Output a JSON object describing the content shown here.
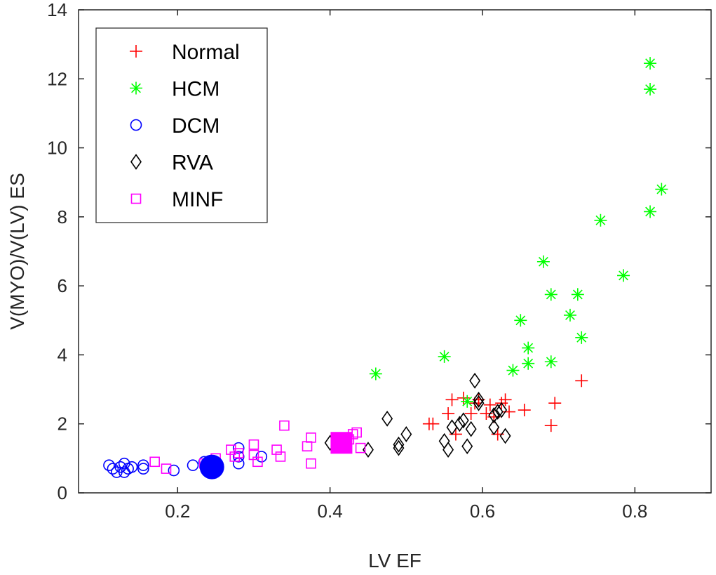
{
  "chart_data": {
    "type": "scatter",
    "title": "",
    "xlabel": "LV EF",
    "ylabel": "V(MYO)/V(LV) ES",
    "xlim": [
      0.07,
      0.9
    ],
    "ylim": [
      0,
      14
    ],
    "xticks": [
      0.2,
      0.4,
      0.6,
      0.8
    ],
    "yticks": [
      0,
      2,
      4,
      6,
      8,
      10,
      12,
      14
    ],
    "xtick_labels": [
      "0.2",
      "0.4",
      "0.6",
      "0.8"
    ],
    "ytick_labels": [
      "0",
      "2",
      "4",
      "6",
      "8",
      "10",
      "12",
      "14"
    ],
    "grid": false,
    "legend_position": "top-left",
    "series": [
      {
        "name": "Normal",
        "marker": "plus",
        "color": "#ff0000",
        "points": [
          [
            0.53,
            2.0
          ],
          [
            0.535,
            2.0
          ],
          [
            0.555,
            2.3
          ],
          [
            0.56,
            2.7
          ],
          [
            0.565,
            1.7
          ],
          [
            0.575,
            2.75
          ],
          [
            0.585,
            2.3
          ],
          [
            0.59,
            2.6
          ],
          [
            0.595,
            2.7
          ],
          [
            0.605,
            2.3
          ],
          [
            0.61,
            2.55
          ],
          [
            0.615,
            2.2
          ],
          [
            0.62,
            1.7
          ],
          [
            0.625,
            2.6
          ],
          [
            0.63,
            2.7
          ],
          [
            0.635,
            2.35
          ],
          [
            0.655,
            2.4
          ],
          [
            0.69,
            1.95
          ],
          [
            0.695,
            2.6
          ],
          [
            0.73,
            3.25
          ]
        ]
      },
      {
        "name": "HCM",
        "marker": "asterisk",
        "color": "#00ff00",
        "points": [
          [
            0.46,
            3.45
          ],
          [
            0.55,
            3.95
          ],
          [
            0.58,
            2.65
          ],
          [
            0.64,
            3.55
          ],
          [
            0.65,
            5.0
          ],
          [
            0.66,
            4.2
          ],
          [
            0.66,
            3.75
          ],
          [
            0.68,
            6.7
          ],
          [
            0.69,
            5.75
          ],
          [
            0.69,
            3.8
          ],
          [
            0.715,
            5.15
          ],
          [
            0.725,
            5.75
          ],
          [
            0.73,
            4.5
          ],
          [
            0.755,
            7.9
          ],
          [
            0.785,
            6.3
          ],
          [
            0.82,
            12.45
          ],
          [
            0.82,
            11.7
          ],
          [
            0.82,
            8.15
          ],
          [
            0.835,
            8.8
          ]
        ]
      },
      {
        "name": "DCM",
        "marker": "circle",
        "color": "#0000ff",
        "points": [
          [
            0.11,
            0.8
          ],
          [
            0.115,
            0.7
          ],
          [
            0.12,
            0.6
          ],
          [
            0.125,
            0.75
          ],
          [
            0.13,
            0.85
          ],
          [
            0.13,
            0.6
          ],
          [
            0.135,
            0.7
          ],
          [
            0.14,
            0.75
          ],
          [
            0.155,
            0.7
          ],
          [
            0.155,
            0.8
          ],
          [
            0.195,
            0.65
          ],
          [
            0.22,
            0.8
          ],
          [
            0.235,
            0.9
          ],
          [
            0.28,
            1.3
          ],
          [
            0.28,
            1.05
          ],
          [
            0.28,
            0.85
          ],
          [
            0.31,
            1.05
          ]
        ]
      },
      {
        "name": "RVA",
        "marker": "diamond",
        "color": "#000000",
        "points": [
          [
            0.4,
            1.45
          ],
          [
            0.45,
            1.25
          ],
          [
            0.475,
            2.15
          ],
          [
            0.49,
            1.4
          ],
          [
            0.49,
            1.3
          ],
          [
            0.5,
            1.7
          ],
          [
            0.55,
            1.5
          ],
          [
            0.555,
            1.25
          ],
          [
            0.56,
            1.9
          ],
          [
            0.57,
            2.0
          ],
          [
            0.575,
            2.1
          ],
          [
            0.58,
            1.35
          ],
          [
            0.585,
            1.85
          ],
          [
            0.59,
            3.25
          ],
          [
            0.595,
            2.6
          ],
          [
            0.595,
            2.7
          ],
          [
            0.615,
            1.9
          ],
          [
            0.615,
            2.25
          ],
          [
            0.62,
            2.35
          ],
          [
            0.625,
            2.4
          ],
          [
            0.63,
            1.65
          ]
        ]
      },
      {
        "name": "MINF",
        "marker": "square",
        "color": "#ff00ff",
        "points": [
          [
            0.17,
            0.9
          ],
          [
            0.185,
            0.7
          ],
          [
            0.235,
            0.85
          ],
          [
            0.25,
            1.0
          ],
          [
            0.27,
            1.25
          ],
          [
            0.275,
            1.05
          ],
          [
            0.28,
            1.15
          ],
          [
            0.3,
            1.4
          ],
          [
            0.3,
            1.1
          ],
          [
            0.305,
            0.9
          ],
          [
            0.33,
            1.25
          ],
          [
            0.335,
            1.05
          ],
          [
            0.34,
            1.95
          ],
          [
            0.37,
            1.35
          ],
          [
            0.375,
            1.6
          ],
          [
            0.375,
            0.85
          ],
          [
            0.42,
            1.45
          ],
          [
            0.425,
            1.55
          ],
          [
            0.43,
            1.7
          ],
          [
            0.435,
            1.75
          ],
          [
            0.44,
            1.3
          ]
        ]
      }
    ],
    "centroids": [
      {
        "series": "DCM",
        "marker": "filled-circle",
        "color": "#0000ff",
        "x": 0.245,
        "y": 0.75
      },
      {
        "series": "MINF",
        "marker": "filled-square",
        "color": "#ff00ff",
        "x": 0.415,
        "y": 1.45
      }
    ]
  }
}
